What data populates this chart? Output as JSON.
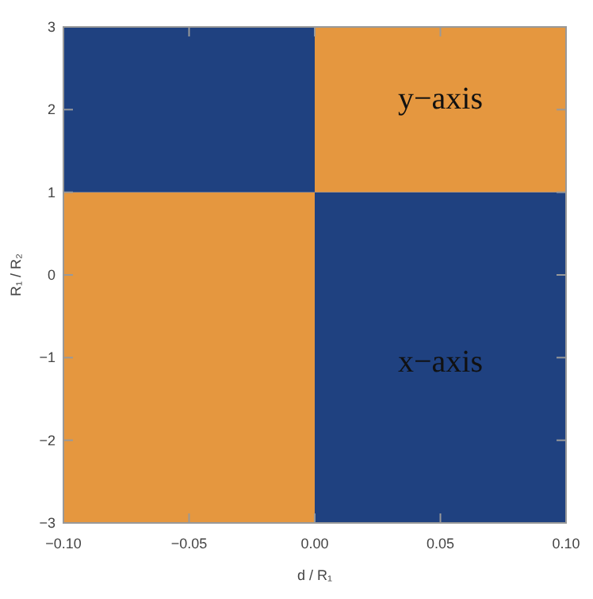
{
  "chart_data": {
    "type": "bar",
    "xlabel": "d / R₁",
    "ylabel": "R₁ / R₂",
    "xlim": [
      -0.1,
      0.1
    ],
    "ylim": [
      -3,
      3
    ],
    "x": [
      -0.05,
      0.05
    ],
    "xticks": [
      {
        "value": -0.1,
        "label": "−0.10"
      },
      {
        "value": -0.05,
        "label": "−0.05"
      },
      {
        "value": 0,
        "label": "0.00"
      },
      {
        "value": 0.05,
        "label": "0.05"
      },
      {
        "value": 0.1,
        "label": "0.10"
      }
    ],
    "yticks": [
      {
        "value": -3,
        "label": "−3"
      },
      {
        "value": -2,
        "label": "−2"
      },
      {
        "value": -1,
        "label": "−1"
      },
      0,
      1,
      2,
      3
    ],
    "series": [
      {
        "color": "#e5973f",
        "base": [
          -3,
          1
        ],
        "values": [
          4,
          2
        ]
      },
      {
        "color": "#1f4180",
        "base": [
          1,
          -3
        ],
        "values": [
          2,
          4
        ]
      }
    ],
    "annotations": [
      "y−axis",
      "x−axis"
    ]
  }
}
